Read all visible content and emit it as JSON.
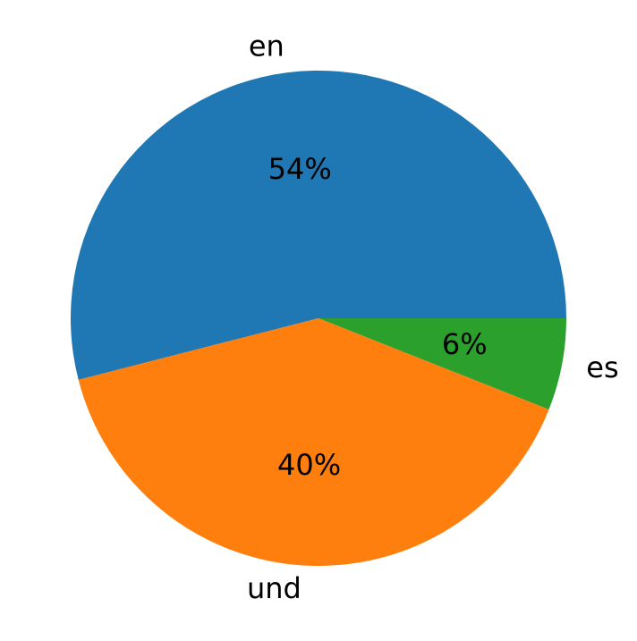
{
  "chart_data": {
    "type": "pie",
    "categories": [
      "en",
      "und",
      "es"
    ],
    "values": [
      54,
      40,
      6
    ],
    "value_labels": [
      "54%",
      "40%",
      "6%"
    ],
    "colors": [
      "#1f77b4",
      "#ff7f0e",
      "#2ca02c"
    ]
  }
}
